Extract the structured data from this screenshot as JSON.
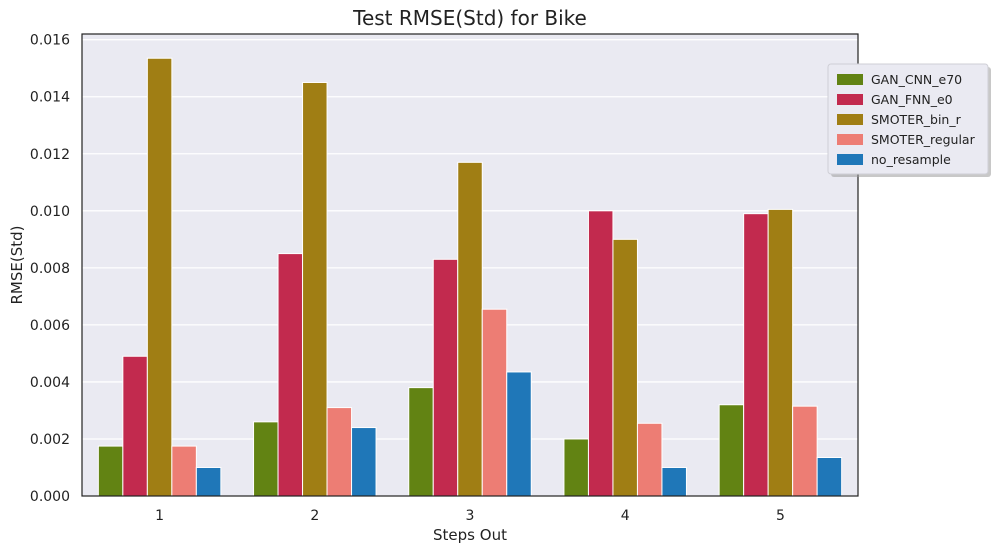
{
  "chart_data": {
    "type": "bar",
    "title": "Test RMSE(Std) for Bike",
    "xlabel": "Steps Out",
    "ylabel": "RMSE(Std)",
    "categories": [
      "1",
      "2",
      "3",
      "4",
      "5"
    ],
    "ylim": [
      0,
      0.0162
    ],
    "yticks": [
      "0.000",
      "0.002",
      "0.004",
      "0.006",
      "0.008",
      "0.010",
      "0.012",
      "0.014",
      "0.016"
    ],
    "grid": true,
    "legend_position": "top-right (outside)",
    "series": [
      {
        "name": "GAN_CNN_e70",
        "color": "#628313",
        "values": [
          0.00175,
          0.0026,
          0.0038,
          0.002,
          0.0032
        ]
      },
      {
        "name": "GAN_FNN_e0",
        "color": "#C22A4E",
        "values": [
          0.0049,
          0.0085,
          0.0083,
          0.01,
          0.0099
        ]
      },
      {
        "name": "SMOTER_bin_r",
        "color": "#A07E14",
        "values": [
          0.01535,
          0.0145,
          0.0117,
          0.009,
          0.01005
        ]
      },
      {
        "name": "SMOTER_regular",
        "color": "#ED7D74",
        "values": [
          0.00175,
          0.0031,
          0.00655,
          0.00255,
          0.00315
        ]
      },
      {
        "name": "no_resample",
        "color": "#1F77B8",
        "values": [
          0.001,
          0.0024,
          0.00435,
          0.001,
          0.00135
        ]
      }
    ]
  }
}
